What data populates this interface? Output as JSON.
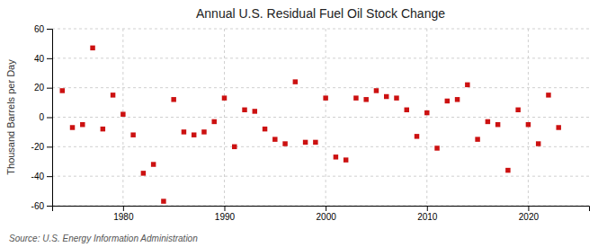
{
  "chart_data": {
    "type": "scatter",
    "title": "Annual U.S. Residual Fuel Oil Stock Change",
    "ylabel": "Thousand Barrels per Day",
    "source": "Source: U.S. Energy Information Administration",
    "color": "#cc1111",
    "marker": "square",
    "grid": true,
    "xlim": [
      1973,
      2026
    ],
    "xticks": [
      1980,
      1990,
      2000,
      2010,
      2020
    ],
    "ylim": [
      -60,
      60
    ],
    "yticks": [
      -60,
      -40,
      -20,
      0,
      20,
      40,
      60
    ],
    "x": [
      1974,
      1975,
      1976,
      1977,
      1978,
      1979,
      1980,
      1981,
      1982,
      1983,
      1984,
      1985,
      1986,
      1987,
      1988,
      1989,
      1990,
      1991,
      1992,
      1993,
      1994,
      1995,
      1996,
      1997,
      1998,
      1999,
      2000,
      2001,
      2002,
      2003,
      2004,
      2005,
      2006,
      2007,
      2008,
      2009,
      2010,
      2011,
      2012,
      2013,
      2014,
      2015,
      2016,
      2017,
      2018,
      2019,
      2020,
      2021,
      2022,
      2023
    ],
    "values": [
      18,
      -7,
      -5,
      47,
      -8,
      15,
      2,
      -12,
      -38,
      -32,
      -57,
      12,
      -10,
      -12,
      -10,
      -3,
      13,
      -20,
      5,
      4,
      -8,
      -15,
      -18,
      24,
      -17,
      -17,
      13,
      -27,
      -29,
      13,
      12,
      18,
      14,
      13,
      5,
      -13,
      3,
      -21,
      11,
      12,
      22,
      -15,
      -3,
      -5,
      -36,
      5,
      -5,
      -18,
      15,
      -7
    ]
  }
}
